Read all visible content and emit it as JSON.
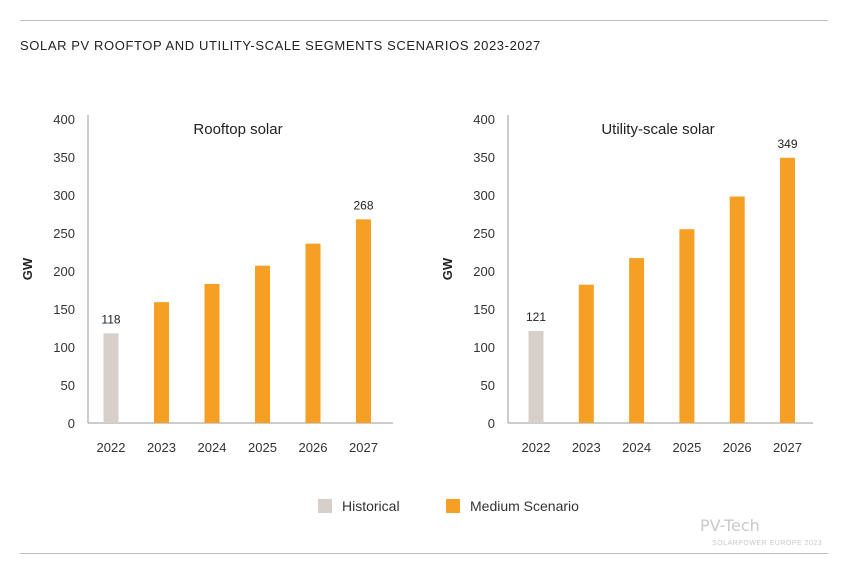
{
  "page": {
    "title": "SOLAR PV ROOFTOP AND UTILITY-SCALE SEGMENTS SCENARIOS 2023-2027"
  },
  "colors": {
    "historical": "#d6cfca",
    "scenario": "#f5a025",
    "axis": "#9a9a9a"
  },
  "legend": {
    "historical_label": "Historical",
    "scenario_label": "Medium Scenario"
  },
  "watermark": {
    "text": "PV-Tech",
    "sub": "SOLARPOWER EUROPE 2023"
  },
  "chart_data": [
    {
      "type": "bar",
      "title": "Rooftop solar",
      "ylabel": "GW",
      "xlabel": "",
      "ylim": [
        0,
        400
      ],
      "yticks": [
        "0",
        "50",
        "100",
        "150",
        "200",
        "250",
        "300",
        "350",
        "400"
      ],
      "categories": [
        "2022",
        "2023",
        "2024",
        "2025",
        "2026",
        "2027"
      ],
      "values": [
        118,
        159,
        183,
        207,
        236,
        268
      ],
      "kinds": [
        "historical",
        "scenario",
        "scenario",
        "scenario",
        "scenario",
        "scenario"
      ],
      "data_labels": [
        "118",
        "",
        "",
        "",
        "",
        "268"
      ],
      "grid": false
    },
    {
      "type": "bar",
      "title": "Utility-scale solar",
      "ylabel": "GW",
      "xlabel": "",
      "ylim": [
        0,
        400
      ],
      "yticks": [
        "0",
        "50",
        "100",
        "150",
        "200",
        "250",
        "300",
        "350",
        "400"
      ],
      "categories": [
        "2022",
        "2023",
        "2024",
        "2025",
        "2026",
        "2027"
      ],
      "values": [
        121,
        182,
        217,
        255,
        298,
        349
      ],
      "kinds": [
        "historical",
        "scenario",
        "scenario",
        "scenario",
        "scenario",
        "scenario"
      ],
      "data_labels": [
        "121",
        "",
        "",
        "",
        "",
        "349"
      ],
      "grid": false
    }
  ]
}
